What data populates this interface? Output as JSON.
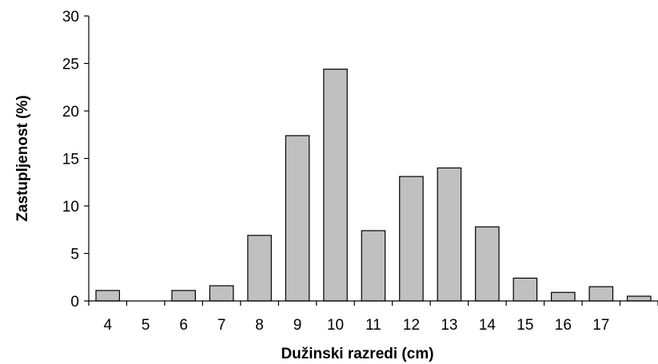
{
  "chart_data": {
    "type": "bar",
    "title": "",
    "xlabel": "Dužinski razredi (cm)",
    "ylabel": "Zastupljenost (%)",
    "categories": [
      "4",
      "5",
      "6",
      "7",
      "8",
      "9",
      "10",
      "11",
      "12",
      "13",
      "14",
      "15",
      "16",
      "17",
      ""
    ],
    "values": [
      1.1,
      0,
      1.1,
      1.6,
      6.9,
      17.4,
      24.4,
      7.4,
      13.1,
      14.0,
      7.8,
      2.4,
      0.9,
      1.5,
      0.5
    ],
    "ylim": [
      0,
      30
    ],
    "yticks": [
      0,
      5,
      10,
      15,
      20,
      25,
      30
    ],
    "grid": false,
    "legend": "none",
    "bar_color": "#c0c0c0"
  }
}
